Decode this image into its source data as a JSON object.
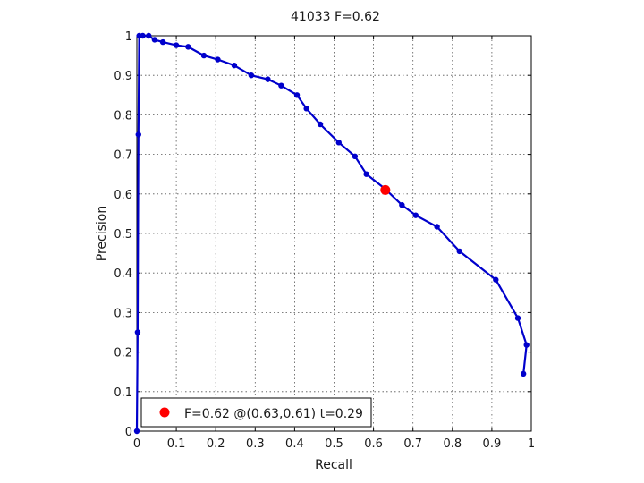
{
  "chart_data": {
    "type": "line",
    "title": "41033 F=0.62",
    "xlabel": "Recall",
    "ylabel": "Precision",
    "xlim": [
      0,
      1
    ],
    "ylim": [
      0,
      1
    ],
    "grid": true,
    "x_ticks": [
      "0",
      "0.1",
      "0.2",
      "0.3",
      "0.4",
      "0.5",
      "0.6",
      "0.7",
      "0.8",
      "0.9",
      "1"
    ],
    "y_ticks": [
      "0",
      "0.1",
      "0.2",
      "0.3",
      "0.4",
      "0.5",
      "0.6",
      "0.7",
      "0.8",
      "0.9",
      "1"
    ],
    "series": [
      {
        "color": "#0000cc",
        "points": [
          [
            0.0,
            0.0
          ],
          [
            0.002,
            0.25
          ],
          [
            0.004,
            0.75
          ],
          [
            0.006,
            1.0
          ],
          [
            0.015,
            1.0
          ],
          [
            0.03,
            1.0
          ],
          [
            0.045,
            0.99
          ],
          [
            0.066,
            0.984
          ],
          [
            0.1,
            0.976
          ],
          [
            0.13,
            0.972
          ],
          [
            0.17,
            0.95
          ],
          [
            0.205,
            0.94
          ],
          [
            0.247,
            0.925
          ],
          [
            0.29,
            0.9
          ],
          [
            0.332,
            0.89
          ],
          [
            0.366,
            0.874
          ],
          [
            0.406,
            0.85
          ],
          [
            0.43,
            0.816
          ],
          [
            0.465,
            0.776
          ],
          [
            0.512,
            0.73
          ],
          [
            0.553,
            0.695
          ],
          [
            0.582,
            0.65
          ],
          [
            0.628,
            0.614
          ],
          [
            0.672,
            0.572
          ],
          [
            0.707,
            0.546
          ],
          [
            0.761,
            0.517
          ],
          [
            0.818,
            0.455
          ],
          [
            0.91,
            0.383
          ],
          [
            0.966,
            0.286
          ],
          [
            0.988,
            0.218
          ],
          [
            0.98,
            0.145
          ]
        ]
      }
    ],
    "best_point": {
      "recall": 0.63,
      "precision": 0.61,
      "color": "#ff0000"
    },
    "legend": {
      "label": "F=0.62 @(0.63,0.61) t=0.29",
      "placement": "bottom-left"
    }
  }
}
